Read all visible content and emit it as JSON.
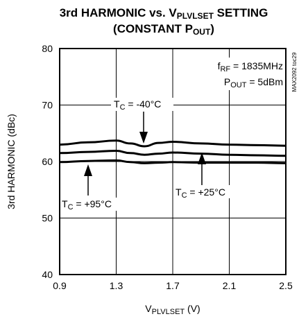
{
  "chart_data": {
    "type": "line",
    "title": {
      "line1_prefix": "3rd HARMONIC vs. V",
      "line1_sub": "PLVLSET",
      "line1_suffix": " SETTING",
      "line2_prefix": "(CONSTANT P",
      "line2_sub": "OUT",
      "line2_suffix": ")"
    },
    "xlabel": {
      "prefix": "V",
      "sub": "PLVLSET",
      "suffix": " (V)"
    },
    "ylabel": "3rd HARMONIC (dBc)",
    "xlim": [
      0.9,
      2.5
    ],
    "ylim": [
      40,
      80
    ],
    "x_ticks": [
      "0.9",
      "1.3",
      "1.7",
      "2.1",
      "2.5"
    ],
    "y_ticks": [
      "40",
      "50",
      "60",
      "70",
      "80"
    ],
    "grid": true,
    "conditions": {
      "frf": {
        "prefix": "f",
        "sub": "RF",
        "suffix": " = 1835MHz"
      },
      "pout": {
        "prefix": "P",
        "sub": "OUT",
        "suffix": " = 5dBm"
      }
    },
    "side_label": "MAX2092 toc29",
    "series": [
      {
        "name": {
          "prefix": "T",
          "sub": "C",
          "suffix": " = -40°C"
        },
        "x": [
          0.9,
          1.1,
          1.3,
          1.4,
          1.5,
          1.6,
          1.7,
          1.9,
          2.1,
          2.3,
          2.5
        ],
        "y": [
          63.0,
          63.4,
          63.7,
          63.2,
          62.7,
          63.3,
          63.5,
          63.2,
          63.0,
          62.9,
          62.8
        ]
      },
      {
        "name": {
          "prefix": "T",
          "sub": "C",
          "suffix": " = +25°C"
        },
        "x": [
          0.9,
          1.1,
          1.3,
          1.4,
          1.5,
          1.6,
          1.7,
          1.9,
          2.1,
          2.3,
          2.5
        ],
        "y": [
          61.5,
          61.7,
          61.9,
          61.5,
          61.2,
          61.4,
          61.6,
          61.4,
          61.2,
          61.1,
          61.0
        ]
      },
      {
        "name": {
          "prefix": "T",
          "sub": "C",
          "suffix": " = +95°C"
        },
        "x": [
          0.9,
          1.1,
          1.3,
          1.4,
          1.5,
          1.6,
          1.7,
          1.9,
          2.1,
          2.3,
          2.5
        ],
        "y": [
          59.9,
          60.1,
          60.2,
          59.9,
          59.7,
          59.8,
          59.9,
          59.8,
          59.8,
          59.8,
          59.7
        ]
      }
    ]
  }
}
